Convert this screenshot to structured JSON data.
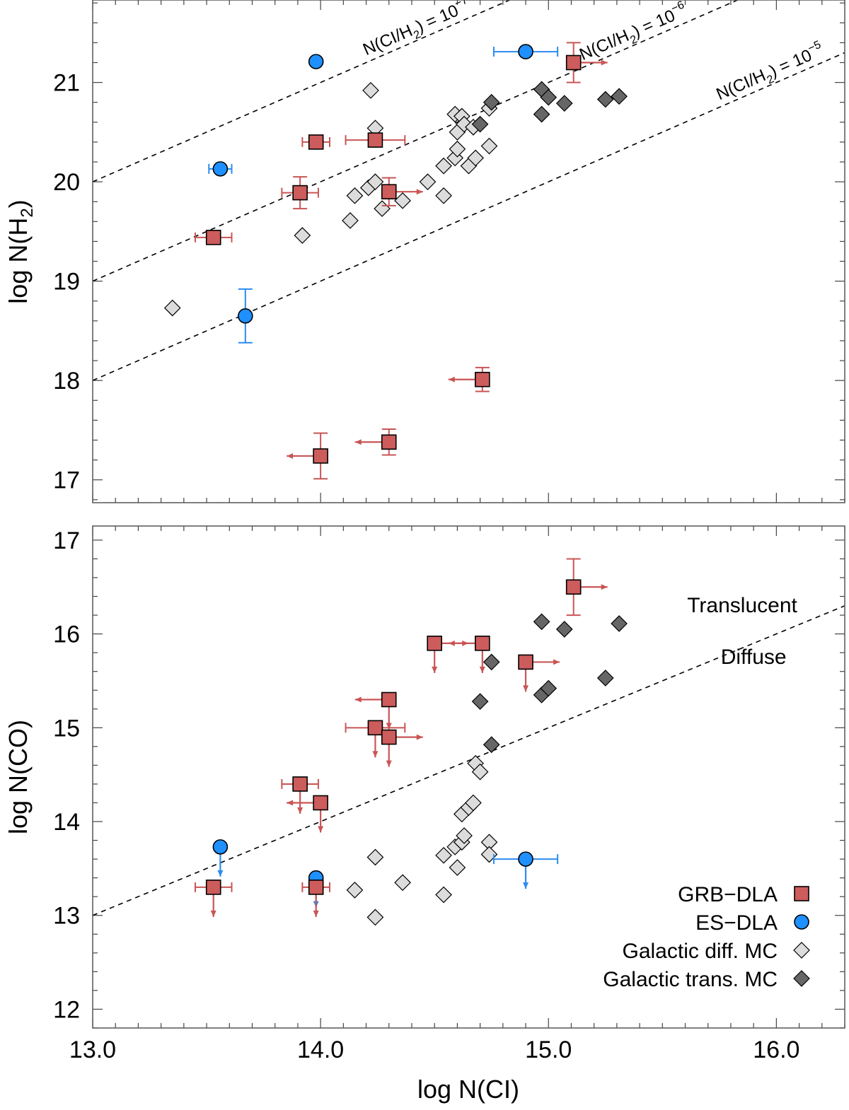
{
  "colors": {
    "grb": "#cd5c5c",
    "grb_err": "#c95555",
    "es": "#1e90ff",
    "es_err": "#2b8cf0",
    "diff_mc": "#dcdcdc",
    "trans_mc": "#666666"
  },
  "chart_data": [
    {
      "type": "scatter",
      "panel": "top",
      "title": "",
      "xlabel": "",
      "ylabel_main": "log N(H",
      "ylabel_sub": "2",
      "ylabel_close": ")",
      "xlim": [
        13.0,
        16.3
      ],
      "ylim": [
        16.77,
        21.83
      ],
      "y_ticks": [
        17,
        18,
        19,
        20,
        21
      ],
      "y_tick_labels": [
        "17",
        "18",
        "19",
        "20",
        "21"
      ],
      "reference_lines": [
        {
          "slope": 1,
          "intercept": 7,
          "label": "N(CI/H2) = 10^-7",
          "main": "N(CI/H",
          "sub": "2",
          "close": ") = 10",
          "exp": "−7",
          "label_x": 14.2,
          "angle": -22
        },
        {
          "slope": 1,
          "intercept": 6,
          "label": "N(CI/H2) = 10^-6",
          "main": "N(CI/H",
          "sub": "2",
          "close": ") = 10",
          "exp": "−6",
          "label_x": 15.15,
          "angle": -22
        },
        {
          "slope": 1,
          "intercept": 5,
          "label": "N(CI/H2) = 10^-5",
          "main": "N(CI/H",
          "sub": "2",
          "close": ") = 10",
          "exp": "−5",
          "label_x": 15.75,
          "angle": -22
        }
      ],
      "series": [
        {
          "name": "GRB-DLA",
          "marker": "square",
          "points": [
            {
              "x": 13.53,
              "y": 19.44,
              "xerr": [
                0.08,
                0.08
              ]
            },
            {
              "x": 13.91,
              "y": 19.89,
              "xerr": [
                0.08,
                0.08
              ],
              "yerr": [
                0.16,
                0.16
              ]
            },
            {
              "x": 13.98,
              "y": 20.4,
              "xerr": [
                0.06,
                0.06
              ]
            },
            {
              "x": 14.24,
              "y": 20.42,
              "xerr": [
                0.13,
                0.13
              ]
            },
            {
              "x": 14.3,
              "y": 19.9,
              "yerr": [
                0.14,
                0.14
              ],
              "xarrow": "right"
            },
            {
              "x": 14.71,
              "y": 18.01,
              "yerr": [
                0.12,
                0.12
              ],
              "xarrow": "left"
            },
            {
              "x": 14.3,
              "y": 17.38,
              "yerr": [
                0.13,
                0.13
              ],
              "xarrow": "left"
            },
            {
              "x": 14.0,
              "y": 17.24,
              "yerr": [
                0.23,
                0.23
              ],
              "xarrow": "left"
            },
            {
              "x": 15.11,
              "y": 21.2,
              "yerr": [
                0.2,
                0.2
              ],
              "xarrow": "right"
            }
          ]
        },
        {
          "name": "ES-DLA",
          "marker": "circle",
          "points": [
            {
              "x": 13.98,
              "y": 21.21
            },
            {
              "x": 13.56,
              "y": 20.13,
              "xerr": [
                0.05,
                0.05
              ]
            },
            {
              "x": 13.67,
              "y": 18.65,
              "yerr": [
                0.27,
                0.27
              ]
            },
            {
              "x": 14.9,
              "y": 21.31,
              "xerr": [
                0.14,
                0.14
              ]
            }
          ]
        },
        {
          "name": "Galactic diff. MC",
          "marker": "diamond",
          "points": [
            {
              "x": 13.35,
              "y": 18.73
            },
            {
              "x": 13.92,
              "y": 19.46
            },
            {
              "x": 14.13,
              "y": 19.61
            },
            {
              "x": 14.15,
              "y": 19.86
            },
            {
              "x": 14.21,
              "y": 19.94
            },
            {
              "x": 14.24,
              "y": 20.0
            },
            {
              "x": 14.27,
              "y": 19.73
            },
            {
              "x": 14.36,
              "y": 19.81
            },
            {
              "x": 14.47,
              "y": 20.0
            },
            {
              "x": 14.54,
              "y": 19.86
            },
            {
              "x": 14.54,
              "y": 20.16
            },
            {
              "x": 14.59,
              "y": 20.24
            },
            {
              "x": 14.6,
              "y": 20.33
            },
            {
              "x": 14.6,
              "y": 20.5
            },
            {
              "x": 14.65,
              "y": 20.16
            },
            {
              "x": 14.68,
              "y": 20.24
            },
            {
              "x": 14.74,
              "y": 20.36
            },
            {
              "x": 14.59,
              "y": 20.68
            },
            {
              "x": 14.62,
              "y": 20.66
            },
            {
              "x": 14.63,
              "y": 20.58
            },
            {
              "x": 14.67,
              "y": 20.55
            },
            {
              "x": 14.74,
              "y": 20.74
            },
            {
              "x": 14.22,
              "y": 20.92
            },
            {
              "x": 14.24,
              "y": 20.54
            }
          ]
        },
        {
          "name": "Galactic trans. MC",
          "marker": "diamond",
          "points": [
            {
              "x": 14.7,
              "y": 20.58
            },
            {
              "x": 14.75,
              "y": 20.8
            },
            {
              "x": 14.97,
              "y": 20.93
            },
            {
              "x": 15.0,
              "y": 20.85
            },
            {
              "x": 14.97,
              "y": 20.68
            },
            {
              "x": 15.07,
              "y": 20.79
            },
            {
              "x": 15.25,
              "y": 20.83
            },
            {
              "x": 15.31,
              "y": 20.86
            }
          ]
        }
      ]
    },
    {
      "type": "scatter",
      "panel": "bottom",
      "title": "",
      "xlabel": "log N(CI)",
      "ylabel": "log N(CO)",
      "xlim": [
        13.0,
        16.3
      ],
      "ylim": [
        11.8,
        17.15
      ],
      "x_ticks": [
        13.0,
        14.0,
        15.0,
        16.0
      ],
      "x_tick_labels": [
        "13.0",
        "14.0",
        "15.0",
        "16.0"
      ],
      "y_ticks": [
        12,
        13,
        14,
        15,
        16,
        17
      ],
      "y_tick_labels": [
        "12",
        "13",
        "14",
        "15",
        "16",
        "17"
      ],
      "reference_lines": [
        {
          "slope": 1,
          "intercept": 0,
          "label": "translucent / diffuse boundary"
        }
      ],
      "region_labels": [
        {
          "text": "Translucent",
          "x": 15.85,
          "y": 16.23
        },
        {
          "text": "Diffuse",
          "x": 15.9,
          "y": 15.68
        }
      ],
      "legend": {
        "placement": "bottom-right",
        "entries": [
          "GRB−DLA",
          "ES−DLA",
          "Galactic diff. MC",
          "Galactic trans. MC"
        ]
      },
      "series": [
        {
          "name": "GRB-DLA",
          "marker": "square",
          "points": [
            {
              "x": 13.53,
              "y": 13.3,
              "xerr": [
                0.08,
                0.08
              ],
              "yarrow": "down"
            },
            {
              "x": 13.91,
              "y": 14.4,
              "xerr": [
                0.08,
                0.08
              ],
              "yarrow": "down"
            },
            {
              "x": 13.98,
              "y": 13.3,
              "xerr": [
                0.06,
                0.06
              ],
              "yarrow": "down"
            },
            {
              "x": 14.0,
              "y": 14.2,
              "xarrow": "left",
              "yarrow": "down"
            },
            {
              "x": 14.24,
              "y": 15.0,
              "xerr": [
                0.13,
                0.13
              ],
              "yarrow": "down"
            },
            {
              "x": 14.3,
              "y": 14.9,
              "xarrow": "right",
              "yarrow": "down"
            },
            {
              "x": 14.3,
              "y": 15.3,
              "xarrow": "left",
              "yarrow": "down"
            },
            {
              "x": 14.5,
              "y": 15.9,
              "xarrow": "right",
              "yarrow": "down"
            },
            {
              "x": 14.71,
              "y": 15.9,
              "xarrow": "left",
              "yarrow": "down"
            },
            {
              "x": 14.9,
              "y": 15.7,
              "xarrow": "right",
              "yarrow": "down"
            },
            {
              "x": 15.11,
              "y": 16.5,
              "yerr": [
                0.3,
                0.3
              ],
              "xarrow": "right"
            }
          ]
        },
        {
          "name": "ES-DLA",
          "marker": "circle",
          "points": [
            {
              "x": 13.56,
              "y": 13.73,
              "yarrow": "down"
            },
            {
              "x": 13.98,
              "y": 13.4,
              "yarrow": "down"
            },
            {
              "x": 14.9,
              "y": 13.6,
              "xerr": [
                0.14,
                0.14
              ],
              "yarrow": "down"
            }
          ]
        },
        {
          "name": "Galactic diff. MC",
          "marker": "diamond",
          "points": [
            {
              "x": 14.15,
              "y": 13.27
            },
            {
              "x": 14.24,
              "y": 13.62
            },
            {
              "x": 14.24,
              "y": 12.98
            },
            {
              "x": 14.36,
              "y": 13.35
            },
            {
              "x": 14.54,
              "y": 13.64
            },
            {
              "x": 14.54,
              "y": 13.22
            },
            {
              "x": 14.59,
              "y": 13.73
            },
            {
              "x": 14.6,
              "y": 13.51
            },
            {
              "x": 14.62,
              "y": 13.78
            },
            {
              "x": 14.63,
              "y": 13.85
            },
            {
              "x": 14.74,
              "y": 13.78
            },
            {
              "x": 14.74,
              "y": 13.65
            },
            {
              "x": 14.62,
              "y": 14.08
            },
            {
              "x": 14.65,
              "y": 14.15
            },
            {
              "x": 14.67,
              "y": 14.2
            },
            {
              "x": 14.68,
              "y": 14.62
            },
            {
              "x": 14.7,
              "y": 14.53
            }
          ]
        },
        {
          "name": "Galactic trans. MC",
          "marker": "diamond",
          "points": [
            {
              "x": 14.7,
              "y": 15.28
            },
            {
              "x": 14.75,
              "y": 14.82
            },
            {
              "x": 14.75,
              "y": 15.7
            },
            {
              "x": 14.97,
              "y": 16.13
            },
            {
              "x": 15.07,
              "y": 16.05
            },
            {
              "x": 14.97,
              "y": 15.35
            },
            {
              "x": 15.0,
              "y": 15.42
            },
            {
              "x": 15.25,
              "y": 15.53
            },
            {
              "x": 15.31,
              "y": 16.11
            }
          ]
        }
      ]
    }
  ]
}
